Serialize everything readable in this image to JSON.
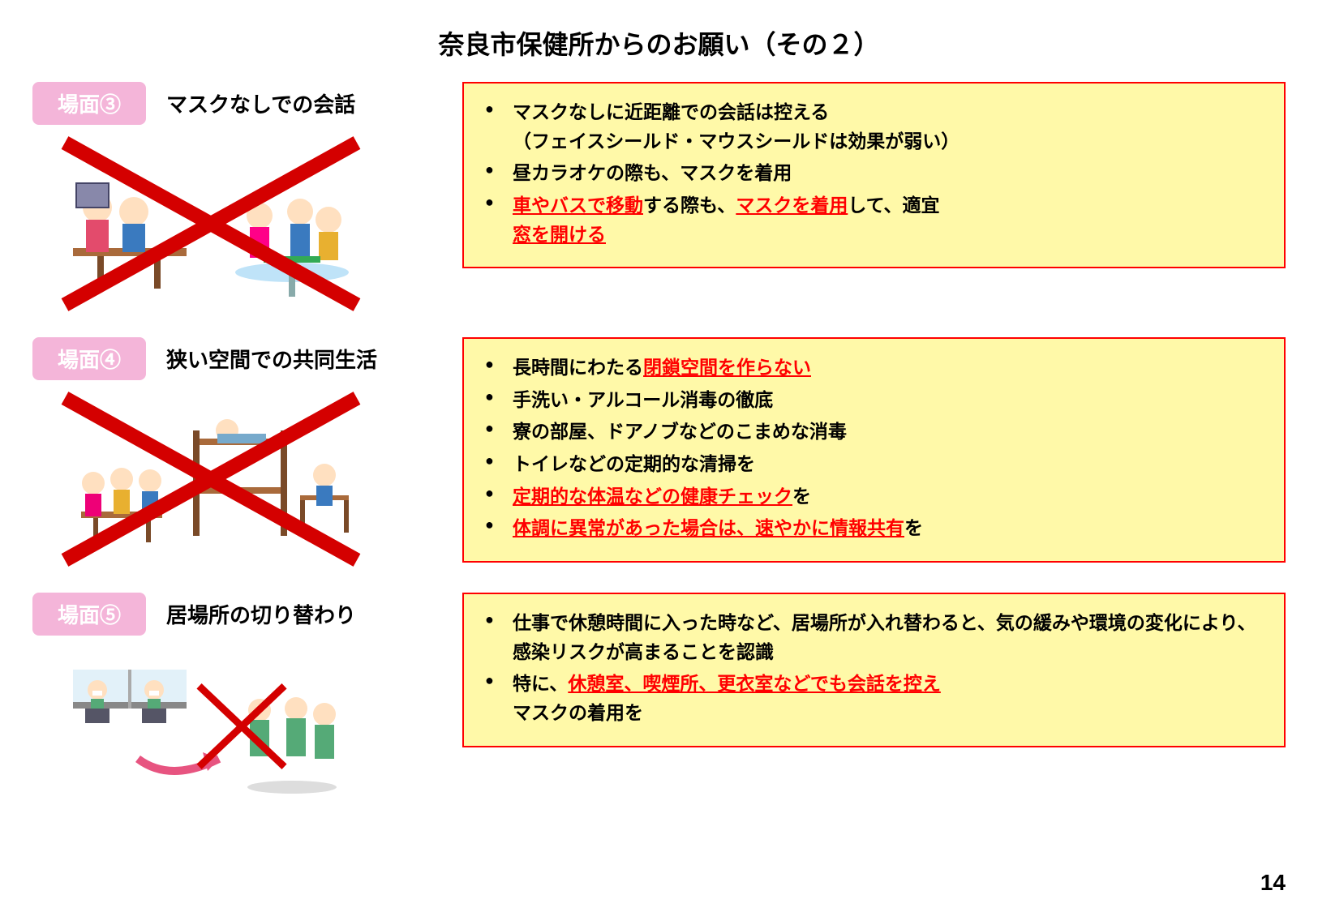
{
  "title": "奈良市保健所からのお願い（その２）",
  "page_number": "14",
  "colors": {
    "badge_bg": "#f4b5d9",
    "badge_text": "#ffffff",
    "box_bg": "#fff9a8",
    "box_border": "#ff0000",
    "red_text": "#ff0000",
    "x_stroke": "#d40000"
  },
  "sections": [
    {
      "badge": "場面③",
      "title": "マスクなしでの会話",
      "bullets": [
        {
          "segments": [
            {
              "text": "マスクなしに近距離での会話は控える"
            },
            {
              "text": "（フェイスシールド・マウスシールドは効果が弱い）",
              "break_before": true
            }
          ]
        },
        {
          "segments": [
            {
              "text": "昼カラオケの際も、マスクを着用"
            }
          ]
        },
        {
          "segments": [
            {
              "text": "車やバスで移動",
              "red": true,
              "underline": true
            },
            {
              "text": "する際も、"
            },
            {
              "text": "マスクを着用",
              "red": true,
              "underline": true
            },
            {
              "text": "して、適宜"
            },
            {
              "text": "窓を開ける",
              "red": true,
              "underline": true,
              "break_before": true
            }
          ]
        }
      ]
    },
    {
      "badge": "場面④",
      "title": "狭い空間での共同生活",
      "bullets": [
        {
          "segments": [
            {
              "text": "長時間にわたる"
            },
            {
              "text": "閉鎖空間を作らない",
              "red": true,
              "underline": true
            }
          ]
        },
        {
          "segments": [
            {
              "text": "手洗い・アルコール消毒の徹底"
            }
          ]
        },
        {
          "segments": [
            {
              "text": "寮の部屋、ドアノブなどのこまめな消毒"
            }
          ]
        },
        {
          "segments": [
            {
              "text": "トイレなどの定期的な清掃を"
            }
          ]
        },
        {
          "segments": [
            {
              "text": "定期的な体温などの健康チェック",
              "red": true,
              "underline": true
            },
            {
              "text": "を"
            }
          ]
        },
        {
          "segments": [
            {
              "text": "体調に異常があった場合は、速やかに情報共有",
              "red": true,
              "underline": true
            },
            {
              "text": "を"
            }
          ]
        }
      ]
    },
    {
      "badge": "場面⑤",
      "title": "居場所の切り替わり",
      "bullets": [
        {
          "segments": [
            {
              "text": "仕事で休憩時間に入った時など、居場所が入れ替わると、気の緩みや環境の変化により、感染リスクが高まることを認識"
            }
          ]
        },
        {
          "segments": [
            {
              "text": "特に、"
            },
            {
              "text": "休憩室、喫煙所、更衣室などでも会話を控え",
              "red": true,
              "underline": true
            },
            {
              "text": "マスクの着用を",
              "break_before": true
            }
          ]
        }
      ]
    }
  ]
}
